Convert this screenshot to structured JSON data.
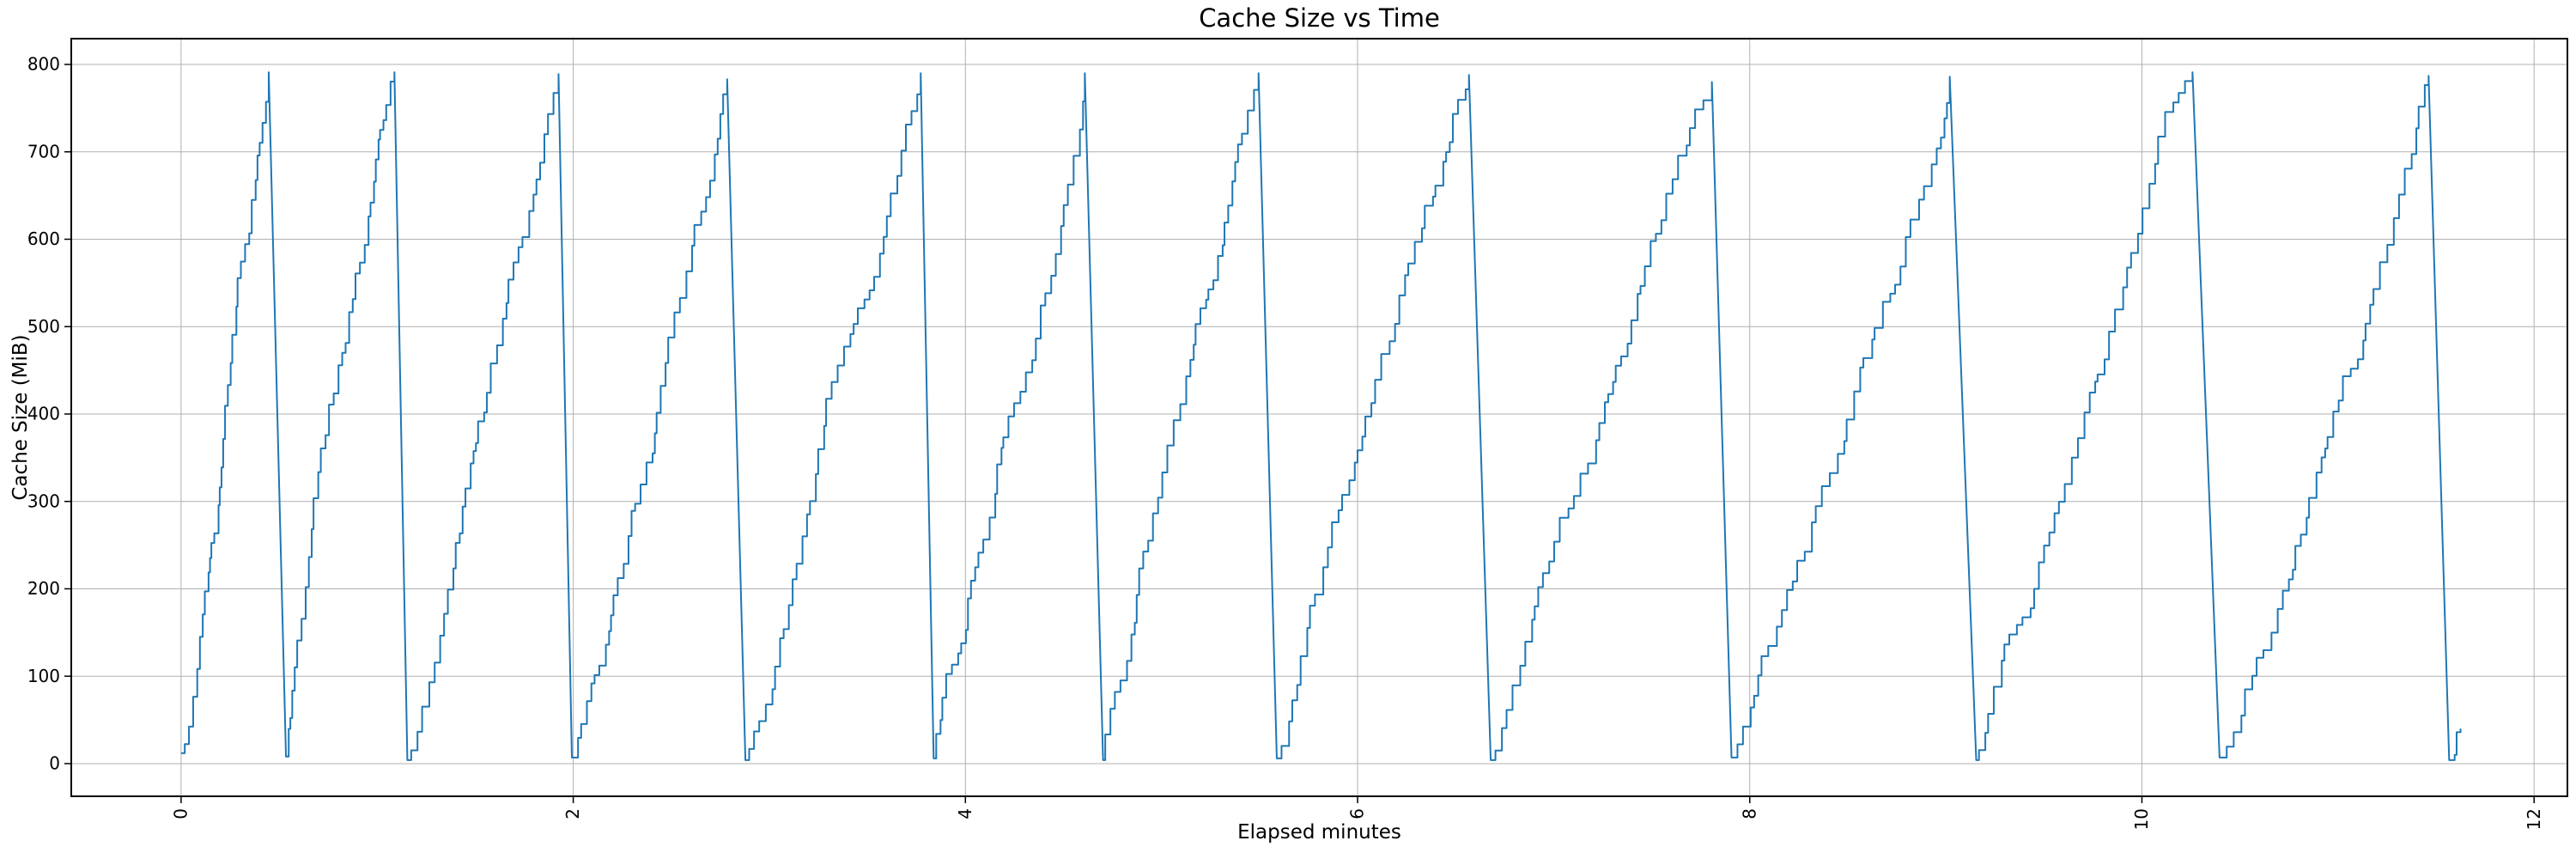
{
  "chart_data": {
    "type": "line",
    "title": "Cache Size vs Time",
    "xlabel": "Elapsed minutes",
    "ylabel": "Cache Size (MiB)",
    "x_ticks": [
      0,
      2,
      4,
      6,
      8,
      10,
      12
    ],
    "y_ticks": [
      0,
      100,
      200,
      300,
      400,
      500,
      600,
      700,
      800
    ],
    "xlim": [
      -0.56,
      12.17
    ],
    "ylim": [
      -37.4,
      829.5
    ],
    "grid": true,
    "x_tick_rotation_deg": 90,
    "series_name": "cache_size_mib",
    "pattern": "sawtooth-staircase",
    "teeth": [
      {
        "t_start": 0.0,
        "v_start": 12,
        "t_peak": 0.447,
        "v_peak": 791,
        "t_reset": 0.535,
        "v_reset": 8
      },
      {
        "t_start": 0.535,
        "v_start": 8,
        "t_peak": 1.088,
        "v_peak": 791,
        "t_reset": 1.154,
        "v_reset": 4
      },
      {
        "t_start": 1.154,
        "v_start": 4,
        "t_peak": 1.925,
        "v_peak": 789,
        "t_reset": 1.993,
        "v_reset": 7
      },
      {
        "t_start": 1.993,
        "v_start": 7,
        "t_peak": 2.785,
        "v_peak": 783,
        "t_reset": 2.878,
        "v_reset": 4
      },
      {
        "t_start": 2.878,
        "v_start": 4,
        "t_peak": 3.772,
        "v_peak": 790,
        "t_reset": 3.838,
        "v_reset": 6
      },
      {
        "t_start": 3.838,
        "v_start": 6,
        "t_peak": 4.609,
        "v_peak": 790,
        "t_reset": 4.702,
        "v_reset": 4
      },
      {
        "t_start": 4.702,
        "v_start": 4,
        "t_peak": 5.495,
        "v_peak": 790,
        "t_reset": 5.588,
        "v_reset": 6
      },
      {
        "t_start": 5.588,
        "v_start": 6,
        "t_peak": 6.568,
        "v_peak": 788,
        "t_reset": 6.679,
        "v_reset": 4
      },
      {
        "t_start": 6.679,
        "v_start": 4,
        "t_peak": 7.807,
        "v_peak": 780,
        "t_reset": 7.907,
        "v_reset": 7
      },
      {
        "t_start": 7.907,
        "v_start": 7,
        "t_peak": 9.02,
        "v_peak": 786,
        "t_reset": 9.155,
        "v_reset": 4
      },
      {
        "t_start": 9.155,
        "v_start": 4,
        "t_peak": 10.258,
        "v_peak": 791,
        "t_reset": 10.396,
        "v_reset": 7
      },
      {
        "t_start": 10.396,
        "v_start": 7,
        "t_peak": 11.462,
        "v_peak": 787,
        "t_reset": 11.567,
        "v_reset": 4
      }
    ],
    "tail": [
      [
        11.567,
        4
      ],
      [
        11.595,
        10
      ],
      [
        11.605,
        36
      ],
      [
        11.625,
        40
      ]
    ],
    "colors": {
      "line": "#1f77b4",
      "grid": "#b0b0b0",
      "spine": "#000000",
      "text": "#000000",
      "background": "#ffffff"
    }
  }
}
